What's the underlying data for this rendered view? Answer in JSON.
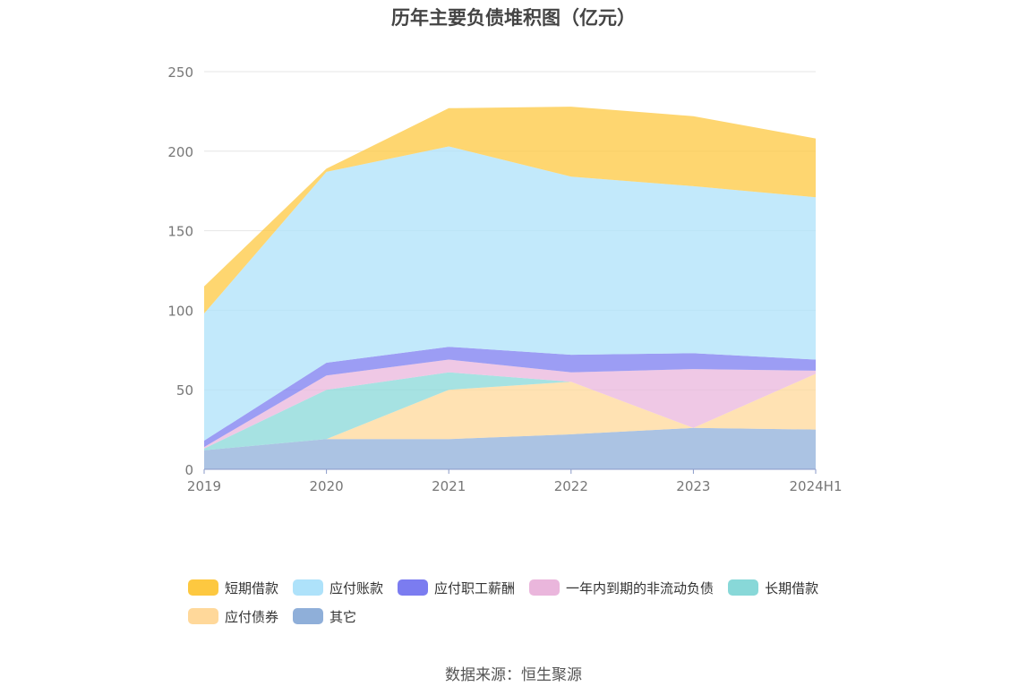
{
  "chart_data": {
    "type": "area",
    "stacked": true,
    "title": "历年主要负债堆积图（亿元）",
    "x": [
      "2019",
      "2020",
      "2021",
      "2022",
      "2023",
      "2024H1"
    ],
    "y_ticks": [
      "0",
      "50",
      "100",
      "150",
      "200",
      "250"
    ],
    "ylim": [
      0,
      250
    ],
    "grid": true,
    "legend_position": "bottom",
    "series": [
      {
        "name": "其它",
        "color": "#8fafd9",
        "values": [
          12,
          19,
          19,
          22,
          26,
          25
        ]
      },
      {
        "name": "应付债券",
        "color": "#ffd89a",
        "values": [
          0,
          0,
          31,
          33,
          0,
          35
        ]
      },
      {
        "name": "长期借款",
        "color": "#88d8d8",
        "values": [
          1,
          31,
          11,
          0,
          0,
          0
        ]
      },
      {
        "name": "一年内到期的非流动负债",
        "color": "#eab6dc",
        "values": [
          1,
          9,
          8,
          6,
          37,
          2
        ]
      },
      {
        "name": "应付职工薪酬",
        "color": "#7b7cf0",
        "values": [
          4,
          8,
          8,
          11,
          10,
          7
        ]
      },
      {
        "name": "应付账款",
        "color": "#aee2fa",
        "values": [
          80,
          120,
          126,
          112,
          105,
          102
        ]
      },
      {
        "name": "短期借款",
        "color": "#fdc840",
        "values": [
          17,
          2,
          24,
          44,
          44,
          37
        ]
      }
    ],
    "legend_order": [
      "短期借款",
      "应付账款",
      "应付职工薪酬",
      "一年内到期的非流动负债",
      "长期借款",
      "应付债券",
      "其它"
    ]
  },
  "source": "数据来源：恒生聚源"
}
